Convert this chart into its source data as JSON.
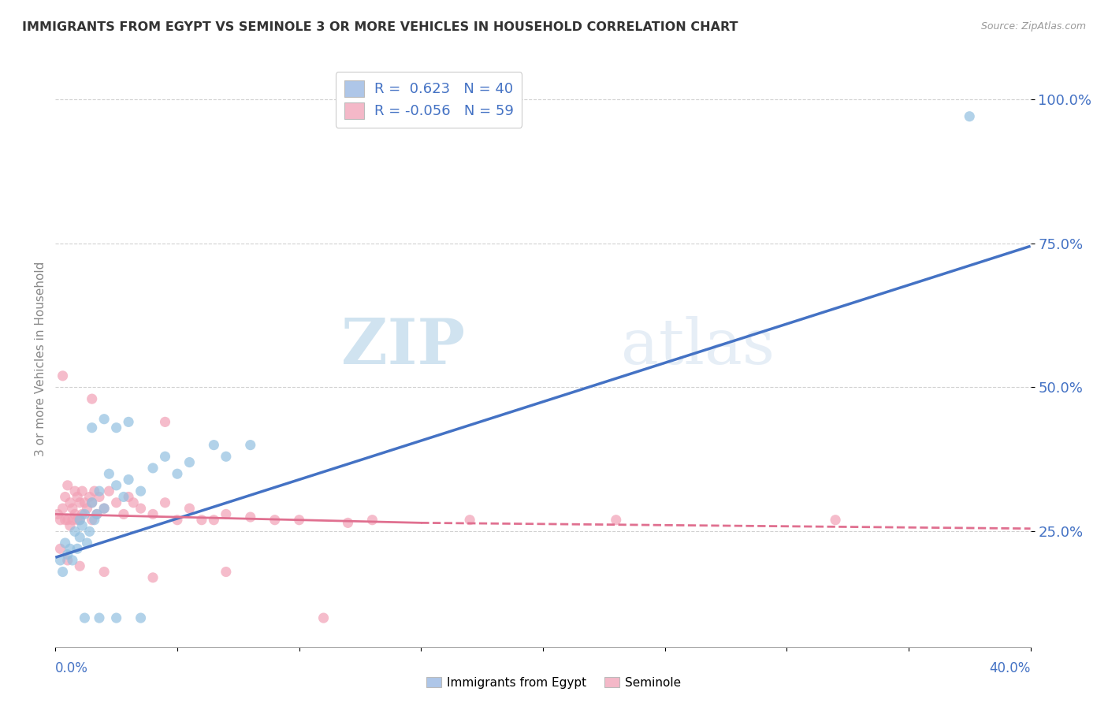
{
  "title": "IMMIGRANTS FROM EGYPT VS SEMINOLE 3 OR MORE VEHICLES IN HOUSEHOLD CORRELATION CHART",
  "source_text": "Source: ZipAtlas.com",
  "ylabel": "3 or more Vehicles in Household",
  "xlim": [
    0.0,
    40.0
  ],
  "ylim": [
    5.0,
    105.0
  ],
  "yticks": [
    25.0,
    50.0,
    75.0,
    100.0
  ],
  "ytick_labels": [
    "25.0%",
    "50.0%",
    "75.0%",
    "100.0%"
  ],
  "blue_color": "#92c0e0",
  "pink_color": "#f2a0b5",
  "blue_line_color": "#4472c4",
  "pink_line_color": "#e07090",
  "watermark_text": "ZIPatlas",
  "blue_scatter": [
    [
      0.2,
      20.0
    ],
    [
      0.3,
      18.0
    ],
    [
      0.4,
      23.0
    ],
    [
      0.5,
      21.0
    ],
    [
      0.6,
      22.0
    ],
    [
      0.7,
      20.0
    ],
    [
      0.8,
      25.0
    ],
    [
      0.9,
      22.0
    ],
    [
      1.0,
      24.0
    ],
    [
      1.0,
      27.0
    ],
    [
      1.1,
      26.0
    ],
    [
      1.2,
      28.0
    ],
    [
      1.3,
      23.0
    ],
    [
      1.4,
      25.0
    ],
    [
      1.5,
      30.0
    ],
    [
      1.6,
      27.0
    ],
    [
      1.7,
      28.0
    ],
    [
      1.8,
      32.0
    ],
    [
      2.0,
      29.0
    ],
    [
      2.2,
      35.0
    ],
    [
      2.5,
      33.0
    ],
    [
      2.8,
      31.0
    ],
    [
      3.0,
      34.0
    ],
    [
      3.5,
      32.0
    ],
    [
      4.0,
      36.0
    ],
    [
      4.5,
      38.0
    ],
    [
      5.0,
      35.0
    ],
    [
      5.5,
      37.0
    ],
    [
      6.5,
      40.0
    ],
    [
      7.0,
      38.0
    ],
    [
      8.0,
      40.0
    ],
    [
      1.5,
      43.0
    ],
    [
      2.0,
      44.5
    ],
    [
      2.5,
      43.0
    ],
    [
      3.0,
      44.0
    ],
    [
      1.2,
      10.0
    ],
    [
      1.8,
      10.0
    ],
    [
      2.5,
      10.0
    ],
    [
      3.5,
      10.0
    ],
    [
      37.5,
      97.0
    ]
  ],
  "pink_scatter": [
    [
      0.1,
      28.0
    ],
    [
      0.2,
      27.0
    ],
    [
      0.3,
      29.0
    ],
    [
      0.4,
      31.0
    ],
    [
      0.4,
      27.0
    ],
    [
      0.5,
      33.0
    ],
    [
      0.5,
      27.0
    ],
    [
      0.6,
      30.0
    ],
    [
      0.6,
      26.0
    ],
    [
      0.7,
      29.0
    ],
    [
      0.7,
      27.0
    ],
    [
      0.8,
      32.0
    ],
    [
      0.8,
      28.0
    ],
    [
      0.9,
      31.0
    ],
    [
      0.9,
      27.0
    ],
    [
      1.0,
      30.0
    ],
    [
      1.0,
      27.0
    ],
    [
      1.1,
      32.0
    ],
    [
      1.1,
      28.0
    ],
    [
      1.2,
      30.0
    ],
    [
      1.3,
      29.0
    ],
    [
      1.4,
      31.0
    ],
    [
      1.5,
      30.0
    ],
    [
      1.5,
      27.0
    ],
    [
      1.6,
      32.0
    ],
    [
      1.7,
      28.0
    ],
    [
      1.8,
      31.0
    ],
    [
      2.0,
      29.0
    ],
    [
      2.2,
      32.0
    ],
    [
      2.5,
      30.0
    ],
    [
      2.8,
      28.0
    ],
    [
      3.0,
      31.0
    ],
    [
      3.2,
      30.0
    ],
    [
      3.5,
      29.0
    ],
    [
      4.0,
      28.0
    ],
    [
      4.5,
      30.0
    ],
    [
      5.0,
      27.0
    ],
    [
      5.5,
      29.0
    ],
    [
      6.0,
      27.0
    ],
    [
      6.5,
      27.0
    ],
    [
      7.0,
      28.0
    ],
    [
      8.0,
      27.5
    ],
    [
      9.0,
      27.0
    ],
    [
      10.0,
      27.0
    ],
    [
      12.0,
      26.5
    ],
    [
      0.3,
      52.0
    ],
    [
      1.5,
      48.0
    ],
    [
      4.5,
      44.0
    ],
    [
      0.2,
      22.0
    ],
    [
      0.5,
      20.0
    ],
    [
      1.0,
      19.0
    ],
    [
      2.0,
      18.0
    ],
    [
      4.0,
      17.0
    ],
    [
      7.0,
      18.0
    ],
    [
      11.0,
      10.0
    ],
    [
      13.0,
      27.0
    ],
    [
      17.0,
      27.0
    ],
    [
      23.0,
      27.0
    ],
    [
      32.0,
      27.0
    ]
  ],
  "blue_line": [
    [
      0.0,
      20.5
    ],
    [
      40.0,
      74.5
    ]
  ],
  "pink_line_solid": [
    [
      0.0,
      28.0
    ],
    [
      15.0,
      26.5
    ]
  ],
  "pink_line_dashed": [
    [
      15.0,
      26.5
    ],
    [
      40.0,
      25.5
    ]
  ],
  "background_color": "#ffffff",
  "grid_color": "#cccccc",
  "title_color": "#333333",
  "axis_label_color": "#4472c4",
  "watermark_color": "#c8ddf0",
  "legend_text_color": "#4472c4",
  "legend_box_blue": "#aec6e8",
  "legend_box_pink": "#f4b8c8",
  "bottom_legend_blue": "#aec6e8",
  "bottom_legend_pink": "#f4b8c8"
}
